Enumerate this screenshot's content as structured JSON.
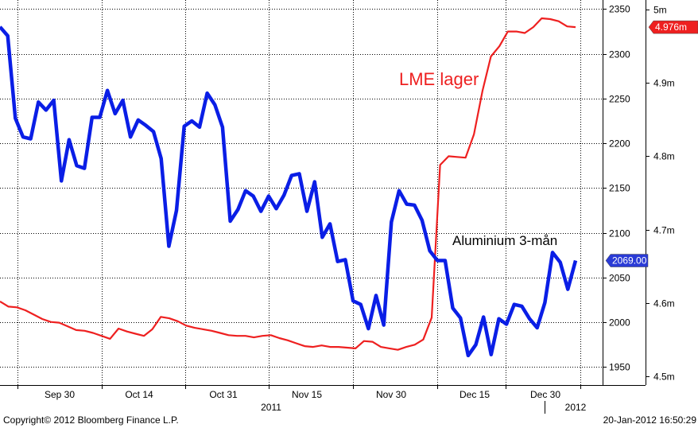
{
  "chart_data": {
    "type": "line",
    "x_ticks": [
      "Sep 30",
      "Oct 14",
      "Oct 31",
      "Nov 15",
      "Nov 30",
      "Dec 15",
      "Dec 30"
    ],
    "year_labels": [
      "2011",
      "2012"
    ],
    "y_left": {
      "range": [
        1930,
        2360
      ],
      "ticks": [
        1950,
        2000,
        2050,
        2100,
        2150,
        2200,
        2250,
        2300,
        2350
      ]
    },
    "y_right": {
      "range": [
        4.488,
        5.013
      ],
      "tick_labels": [
        "4.5m",
        "4.6m",
        "4.7m",
        "4.8m",
        "4.9m",
        "5m"
      ],
      "tick_values": [
        4.5,
        4.6,
        4.7,
        4.8,
        4.9,
        5.0
      ]
    },
    "grid": true,
    "series": [
      {
        "name": "Aluminium 3-mån",
        "axis": "left",
        "color": "#0a1ee6",
        "last_value_label": "2069.00",
        "values": [
          2330,
          2320,
          2228,
          2207,
          2205,
          2246,
          2237,
          2248,
          2158,
          2204,
          2175,
          2172,
          2229,
          2229,
          2259,
          2233,
          2248,
          2207,
          2226,
          2220,
          2213,
          2183,
          2085,
          2125,
          2219,
          2225,
          2218,
          2256,
          2243,
          2218,
          2113,
          2126,
          2147,
          2141,
          2124,
          2141,
          2127,
          2142,
          2164,
          2166,
          2124,
          2157,
          2095,
          2110,
          2068,
          2070,
          2024,
          2020,
          1993,
          2030,
          1997,
          2112,
          2147,
          2132,
          2131,
          2114,
          2080,
          2069,
          2069,
          2016,
          2005,
          1963,
          1975,
          2006,
          1964,
          2004,
          1998,
          2020,
          2018,
          2004,
          1994,
          2022,
          2078,
          2067,
          2037,
          2069
        ]
      },
      {
        "name": "LME lager",
        "axis": "right",
        "color": "#ee2020",
        "last_value_label": "4.976m",
        "values": [
          4.602,
          4.595,
          4.594,
          4.59,
          4.584,
          4.578,
          4.574,
          4.573,
          4.568,
          4.563,
          4.562,
          4.559,
          4.555,
          4.551,
          4.565,
          4.561,
          4.558,
          4.555,
          4.564,
          4.581,
          4.579,
          4.575,
          4.569,
          4.566,
          4.564,
          4.562,
          4.559,
          4.556,
          4.555,
          4.555,
          4.553,
          4.555,
          4.556,
          4.552,
          4.549,
          4.545,
          4.541,
          4.54,
          4.542,
          4.54,
          4.54,
          4.539,
          4.538,
          4.548,
          4.547,
          4.54,
          4.538,
          4.536,
          4.54,
          4.543,
          4.55,
          4.58,
          4.788,
          4.8,
          4.799,
          4.798,
          4.83,
          4.889,
          4.936,
          4.95,
          4.97,
          4.97,
          4.968,
          4.976,
          4.988,
          4.987,
          4.984,
          4.977,
          4.976
        ]
      }
    ],
    "annotations": [
      {
        "text": "LME lager",
        "color": "#ee2020"
      },
      {
        "text": "Aluminium 3-mån",
        "color": "#000000"
      }
    ]
  },
  "footer": {
    "copyright": "Copyright© 2012 Bloomberg Finance L.P.",
    "timestamp": "20-Jan-2012 16:50:29"
  }
}
